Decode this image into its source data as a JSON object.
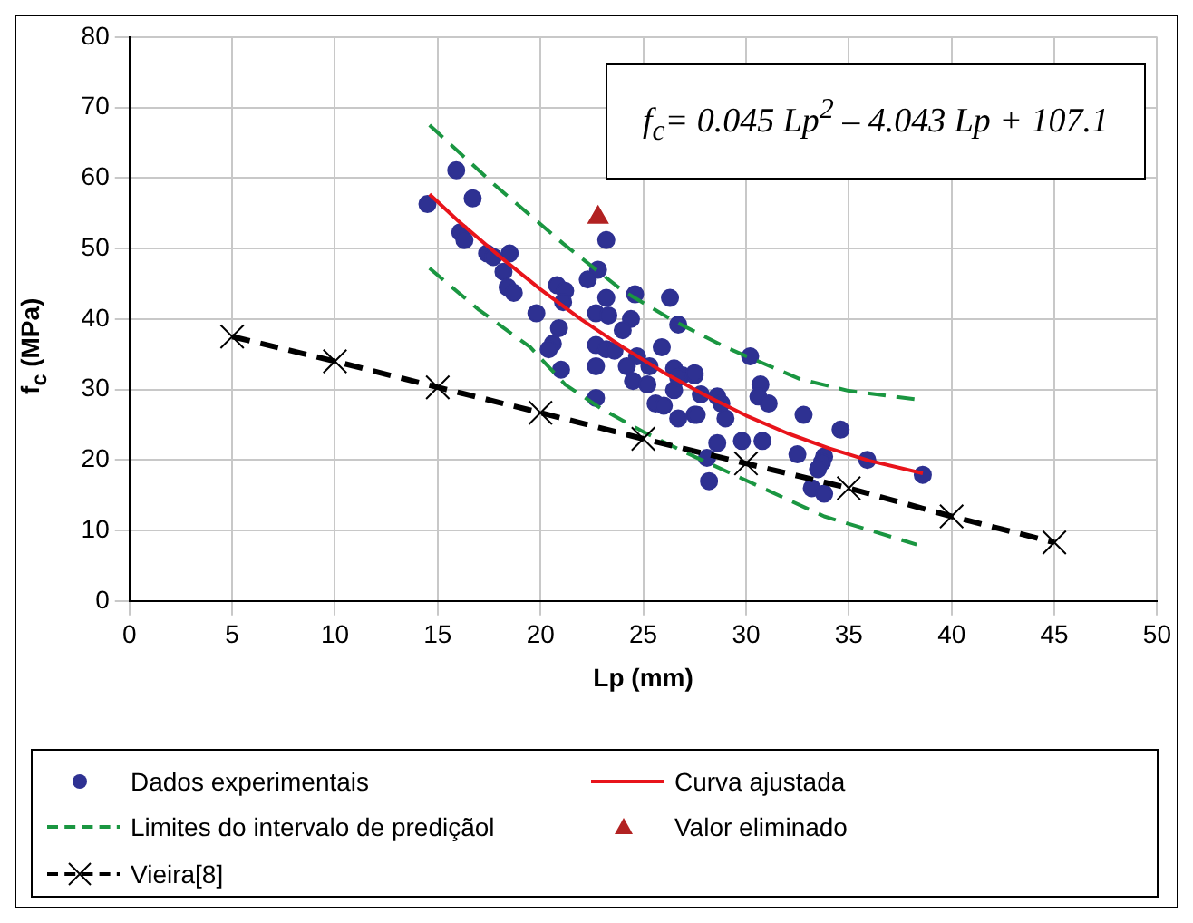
{
  "chart_data": {
    "type": "scatter",
    "xlabel": "Lp (mm)",
    "ylabel": "f$_{c}$ (MPa)",
    "xlim": [
      0,
      50
    ],
    "ylim": [
      0,
      80
    ],
    "xticks": [
      0,
      5,
      10,
      15,
      20,
      25,
      30,
      35,
      40,
      45,
      50
    ],
    "yticks": [
      0,
      10,
      20,
      30,
      40,
      50,
      60,
      70,
      80
    ],
    "grid": true,
    "legend": "bottom",
    "annotations": [
      "f$_{c}$= 0.045 Lp$^{2}$ – 4.043 Lp + 107.1"
    ],
    "series": [
      {
        "name": "Dados experimentais",
        "type": "scatter",
        "color": "#2e3192",
        "marker": "circle",
        "x": [
          15.9,
          14.5,
          16.7,
          16.1,
          16.3,
          17.4,
          17.7,
          18.5,
          18.2,
          18.4,
          18.7,
          19.8,
          23.2,
          22.8,
          22.3,
          20.8,
          21.2,
          21.1,
          23.2,
          24.6,
          26.3,
          22.7,
          23.3,
          24.4,
          24,
          26.7,
          20.9,
          20.6,
          20.4,
          22.7,
          23.2,
          23.6,
          25.9,
          24.7,
          24.2,
          25.3,
          22.7,
          26.5,
          26.9,
          24.5,
          25.2,
          27.5,
          26.5,
          25.6,
          26,
          27.5,
          26.7,
          21,
          22.7,
          30.2,
          27.5,
          26.7,
          30.7,
          30.6,
          31.1,
          28.6,
          28.8,
          27.8,
          27.6,
          29,
          32.8,
          34.6,
          28.6,
          29.8,
          30.8,
          32.5,
          28.1,
          28.2,
          33.8,
          33.7,
          33.5,
          33.2,
          33.8,
          35.9,
          38.6
        ],
        "values": [
          61.1,
          56.3,
          57.1,
          52.3,
          51.2,
          49.3,
          48.8,
          49.3,
          46.7,
          44.5,
          43.7,
          40.8,
          51.2,
          47,
          45.6,
          44.8,
          44,
          42.4,
          43,
          43.5,
          43,
          40.8,
          40.5,
          40,
          38.4,
          39.2,
          38.7,
          36.5,
          35.7,
          36.3,
          35.7,
          35.5,
          36,
          34.7,
          33.3,
          33.3,
          33.3,
          33,
          32,
          31.2,
          30.7,
          32,
          29.9,
          28,
          27.7,
          26.4,
          25.9,
          32.8,
          28.8,
          34.7,
          32.3,
          31.7,
          30.7,
          29,
          28,
          29,
          28,
          29.3,
          26.4,
          25.9,
          26.4,
          24.3,
          22.4,
          22.7,
          22.7,
          20.8,
          20.3,
          17,
          20.5,
          19.7,
          18.7,
          16,
          15.2,
          20,
          17.9
        ]
      },
      {
        "name": "Curva ajustada",
        "type": "line",
        "color": "#e8141b",
        "marker": "none",
        "line_style": "solid",
        "x": [
          14.6,
          16,
          18,
          20,
          22,
          24,
          26,
          28,
          30,
          32,
          34,
          36,
          38.6
        ],
        "values": [
          57.7,
          53.9,
          48.9,
          44.2,
          39.9,
          36,
          32.4,
          29.2,
          26.3,
          23.8,
          21.7,
          19.9,
          18.1
        ]
      },
      {
        "name": "Limites do intervalo de prediçãol",
        "type": "line",
        "color": "#1a9641",
        "marker": "none",
        "line_style": "dashed",
        "x": [
          14.6,
          17.7,
          21.1,
          24,
          26.5,
          29,
          32.6,
          35,
          38.5
        ],
        "values": [
          67.5,
          59.2,
          50.7,
          44,
          39.7,
          36,
          31.5,
          29.8,
          28.5
        ]
      },
      {
        "name": "Valor eliminado",
        "type": "scatter",
        "color": "#b22222",
        "marker": "triangle",
        "x": [
          22.8
        ],
        "values": [
          54.4
        ]
      },
      {
        "name": "Vieira[8]",
        "type": "line",
        "color": "#000000",
        "marker": "cross",
        "line_style": "dashed",
        "x": [
          5,
          10,
          15,
          20,
          25,
          30,
          35,
          40,
          45
        ],
        "values": [
          37.5,
          34,
          30.3,
          26.7,
          23,
          19.5,
          16,
          12,
          8.3
        ]
      },
      {
        "type": "line",
        "color": "#1a9641",
        "marker": "none",
        "line_style": "dashed",
        "x": [
          14.6,
          17,
          19.5,
          21.2,
          23,
          25,
          27.1,
          33.8,
          38.3
        ],
        "values": [
          47.2,
          41.3,
          36,
          30.7,
          27.2,
          24,
          21,
          12,
          8
        ]
      }
    ]
  }
}
